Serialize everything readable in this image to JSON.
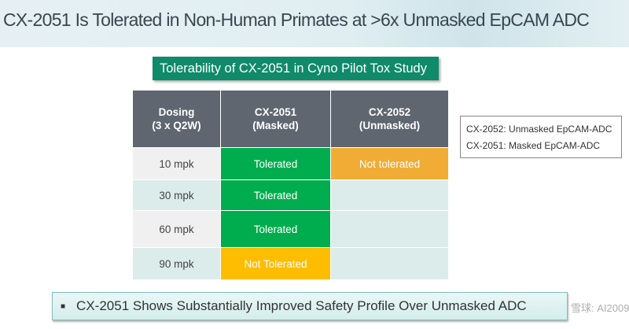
{
  "title": "CX-2051 Is Tolerated in Non-Human Primates at >6x Unmasked EpCAM ADC",
  "subtitle": "Tolerability of CX-2051 in Cyno Pilot Tox Study",
  "table": {
    "headers": [
      [
        "Dosing",
        "(3 x Q2W)"
      ],
      [
        "CX-2051",
        "(Masked)"
      ],
      [
        "CX-2052",
        "(Unmasked)"
      ]
    ],
    "rows": [
      {
        "dose": "10 mpk",
        "cx2051": "Tolerated",
        "cx2052": "Not tolerated"
      },
      {
        "dose": "30 mpk",
        "cx2051": "Tolerated",
        "cx2052": ""
      },
      {
        "dose": "60 mpk",
        "cx2051": "Tolerated",
        "cx2052": ""
      },
      {
        "dose": "90 mpk",
        "cx2051": "Not Tolerated",
        "cx2052": ""
      }
    ]
  },
  "legend": [
    "CX-2052:  Unmasked EpCAM-ADC",
    "CX-2051:  Masked EpCAM-ADC"
  ],
  "conclusion": "CX-2051 Shows Substantially Improved Safety Profile Over Unmasked ADC",
  "watermark": "雪球: AI2009",
  "colors": {
    "tolerated": "#00ad4e",
    "not_tolerated_2052": "#f0ac35",
    "not_tolerated_2051": "#ffbd00",
    "header": "#5f6670",
    "subtitle": "#0f8a6a"
  }
}
